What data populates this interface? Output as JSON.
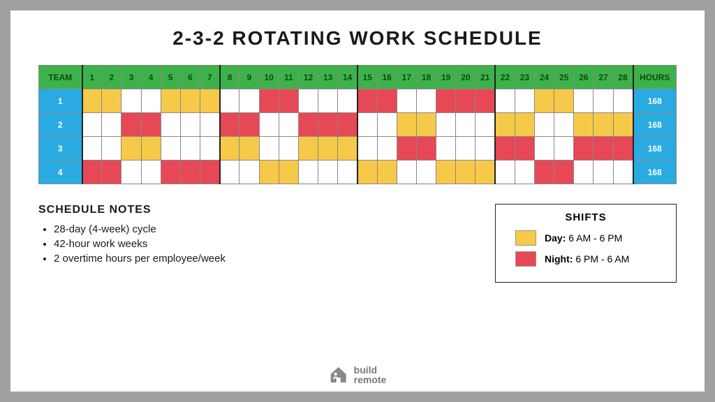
{
  "title": "2-3-2 ROTATING WORK SCHEDULE",
  "colors": {
    "header_green": "#3eb24a",
    "header_green_text": "#0d4a14",
    "side_blue": "#29abe2",
    "day_shift": "#f7c948",
    "night_shift": "#e74856",
    "off": "#ffffff",
    "page_bg": "#ffffff",
    "outer_bg": "#a0a0a0"
  },
  "table": {
    "team_header": "TEAM",
    "hours_header": "HOURS",
    "days": [
      1,
      2,
      3,
      4,
      5,
      6,
      7,
      8,
      9,
      10,
      11,
      12,
      13,
      14,
      15,
      16,
      17,
      18,
      19,
      20,
      21,
      22,
      23,
      24,
      25,
      26,
      27,
      28
    ],
    "week_starts": [
      1,
      8,
      15,
      22
    ],
    "teams": [
      {
        "id": "1",
        "hours": 168,
        "cells": [
          "D",
          "D",
          "O",
          "O",
          "D",
          "D",
          "D",
          "O",
          "O",
          "N",
          "N",
          "O",
          "O",
          "O",
          "N",
          "N",
          "O",
          "O",
          "N",
          "N",
          "N",
          "O",
          "O",
          "D",
          "D",
          "O",
          "O",
          "O"
        ]
      },
      {
        "id": "2",
        "hours": 168,
        "cells": [
          "O",
          "O",
          "N",
          "N",
          "O",
          "O",
          "O",
          "N",
          "N",
          "O",
          "O",
          "N",
          "N",
          "N",
          "O",
          "O",
          "D",
          "D",
          "O",
          "O",
          "O",
          "D",
          "D",
          "O",
          "O",
          "D",
          "D",
          "D"
        ]
      },
      {
        "id": "3",
        "hours": 168,
        "cells": [
          "O",
          "O",
          "D",
          "D",
          "O",
          "O",
          "O",
          "D",
          "D",
          "O",
          "O",
          "D",
          "D",
          "D",
          "O",
          "O",
          "N",
          "N",
          "O",
          "O",
          "O",
          "N",
          "N",
          "O",
          "O",
          "N",
          "N",
          "N"
        ]
      },
      {
        "id": "4",
        "hours": 168,
        "cells": [
          "N",
          "N",
          "O",
          "O",
          "N",
          "N",
          "N",
          "O",
          "O",
          "D",
          "D",
          "O",
          "O",
          "O",
          "D",
          "D",
          "O",
          "O",
          "D",
          "D",
          "D",
          "O",
          "O",
          "N",
          "N",
          "O",
          "O",
          "O"
        ]
      }
    ]
  },
  "notes": {
    "heading": "SCHEDULE NOTES",
    "items": [
      "28-day (4-week) cycle",
      "42-hour work weeks",
      "2 overtime hours per employee/week"
    ]
  },
  "legend": {
    "heading": "SHIFTS",
    "day_label": "Day:",
    "day_time": " 6 AM - 6 PM",
    "night_label": "Night:",
    "night_time": " 6 PM - 6 AM"
  },
  "logo": {
    "line1": "build",
    "line2": "remote"
  }
}
